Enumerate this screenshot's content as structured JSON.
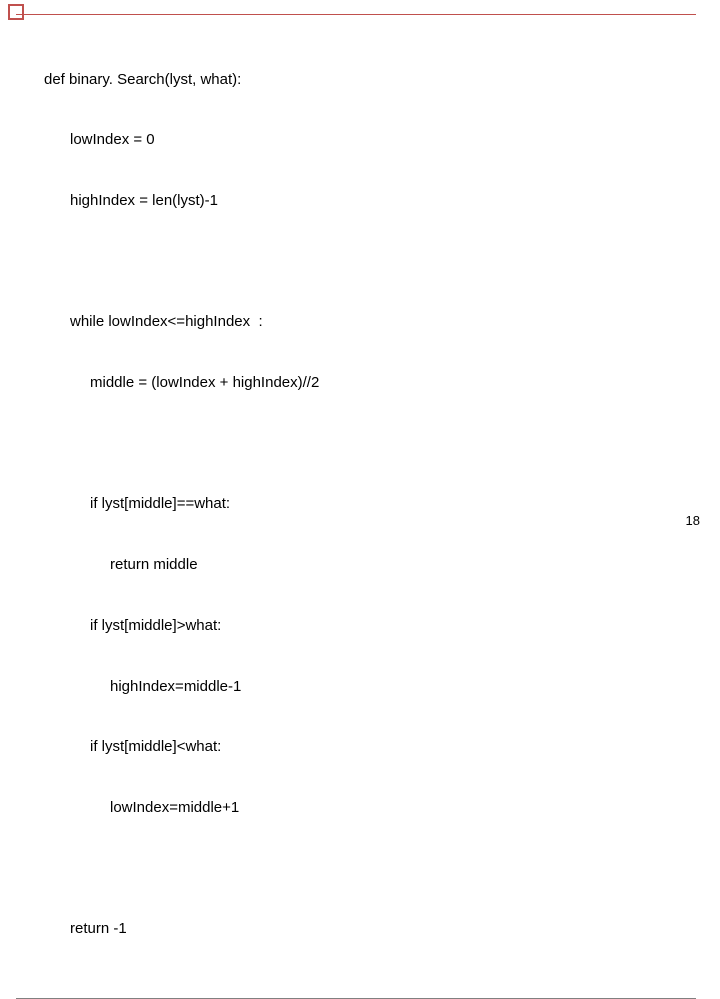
{
  "colors": {
    "accent": "#c0504d",
    "rule": "#808080",
    "text": "#000000",
    "background": "#ffffff"
  },
  "code": {
    "l1": "def binary. Search(lyst, what):",
    "l2": "lowIndex = 0",
    "l3": "highIndex = len(lyst)-1",
    "l4": "while lowIndex<=highIndex  :",
    "l5": "middle = (lowIndex + highIndex)//2",
    "l6": "if lyst[middle]==what:",
    "l7": "return middle",
    "l8": "if lyst[middle]>what:",
    "l9": "highIndex=middle-1",
    "l10": "if lyst[middle]<what:",
    "l11": "lowIndex=middle+1",
    "l12": "return -1"
  },
  "page_number": "18"
}
